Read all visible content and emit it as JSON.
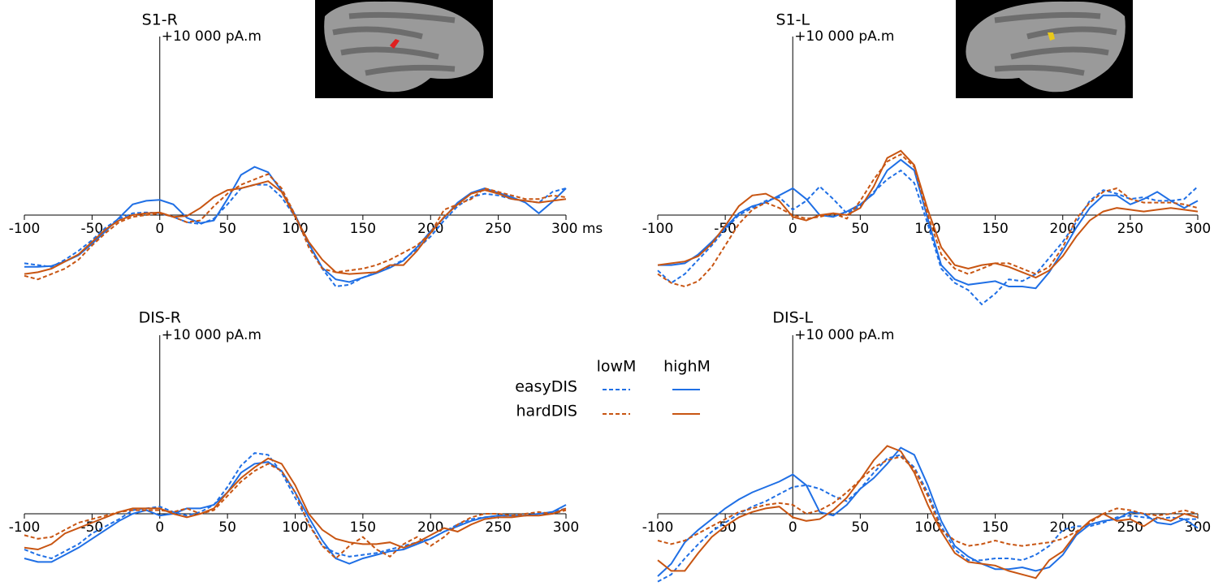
{
  "legend": {
    "columns": [
      {
        "label": "lowM",
        "dash": "dashed"
      },
      {
        "label": "highM",
        "dash": "solid"
      }
    ],
    "rows": [
      {
        "label": "easyDIS",
        "color": "#1f6fe5"
      },
      {
        "label": "hardDIS",
        "color": "#c85512"
      }
    ]
  },
  "chart_data": [
    {
      "type": "line",
      "title": "S1-R",
      "x": [
        -100,
        -90,
        -80,
        -70,
        -60,
        -50,
        -40,
        -30,
        -20,
        -10,
        0,
        10,
        20,
        30,
        40,
        50,
        60,
        70,
        80,
        90,
        100,
        110,
        120,
        130,
        140,
        150,
        160,
        170,
        180,
        190,
        200,
        210,
        220,
        230,
        240,
        250,
        260,
        270,
        280,
        290,
        300
      ],
      "xlim": [
        -100,
        300
      ],
      "xticks": [
        -100,
        -50,
        0,
        50,
        100,
        150,
        200,
        250,
        {
          "value": 300,
          "label": "300 ms"
        }
      ],
      "ylim": [
        -5500,
        10000
      ],
      "yticks": [
        {
          "value": 10000,
          "label": "+10 000 pA.m"
        }
      ],
      "series": [
        {
          "color": "#1f6fe5",
          "dash": "dashed",
          "values": [
            -2700,
            -2800,
            -2900,
            -2500,
            -2000,
            -1400,
            -700,
            -200,
            100,
            150,
            100,
            -100,
            -400,
            -500,
            -200,
            600,
            1500,
            1700,
            1700,
            1000,
            -100,
            -1600,
            -3000,
            -4000,
            -3900,
            -3500,
            -3200,
            -2900,
            -2500,
            -1900,
            -1200,
            -300,
            500,
            1000,
            1200,
            1100,
            900,
            800,
            700,
            1300,
            1500
          ]
        },
        {
          "color": "#1f6fe5",
          "dash": "solid",
          "values": [
            -2900,
            -2900,
            -2850,
            -2600,
            -2250,
            -1600,
            -900,
            -150,
            600,
            800,
            850,
            600,
            -150,
            -450,
            -300,
            900,
            2250,
            2700,
            2400,
            1350,
            0,
            -1600,
            -2950,
            -3600,
            -3750,
            -3500,
            -3250,
            -2950,
            -2550,
            -1800,
            -900,
            -150,
            700,
            1250,
            1500,
            1250,
            1000,
            700,
            100,
            750,
            1500
          ]
        },
        {
          "color": "#c85512",
          "dash": "dashed",
          "values": [
            -3400,
            -3600,
            -3300,
            -3000,
            -2500,
            -1700,
            -1000,
            -400,
            -100,
            0,
            100,
            -100,
            -400,
            -300,
            500,
            1200,
            1700,
            2000,
            2300,
            1500,
            0,
            -1800,
            -3000,
            -3200,
            -3100,
            -3000,
            -2800,
            -2500,
            -2100,
            -1700,
            -1000,
            300,
            600,
            900,
            1500,
            1300,
            1100,
            900,
            900,
            1100,
            1000
          ]
        },
        {
          "color": "#c85512",
          "dash": "solid",
          "values": [
            -3300,
            -3200,
            -3000,
            -2600,
            -2200,
            -1500,
            -800,
            -300,
            0,
            100,
            150,
            -100,
            -50,
            400,
            1000,
            1400,
            1500,
            1700,
            1900,
            1300,
            -100,
            -1500,
            -2500,
            -3200,
            -3300,
            -3250,
            -3200,
            -2800,
            -2800,
            -2000,
            -1000,
            -100,
            600,
            1200,
            1400,
            1200,
            900,
            800,
            700,
            800,
            900
          ]
        }
      ]
    },
    {
      "type": "line",
      "title": "S1-L",
      "x": [
        -100,
        -90,
        -80,
        -70,
        -60,
        -50,
        -40,
        -30,
        -20,
        -10,
        0,
        10,
        20,
        30,
        40,
        50,
        60,
        70,
        80,
        90,
        100,
        110,
        120,
        130,
        140,
        150,
        160,
        170,
        180,
        190,
        200,
        210,
        220,
        230,
        240,
        250,
        260,
        270,
        280,
        290,
        300
      ],
      "xlim": [
        -100,
        300
      ],
      "xticks": [
        -100,
        -50,
        0,
        50,
        100,
        150,
        200,
        250,
        300
      ],
      "ylim": [
        -5500,
        10000
      ],
      "yticks": [
        {
          "value": 10000,
          "label": "+10 000 pA.m"
        }
      ],
      "series": [
        {
          "color": "#1f6fe5",
          "dash": "dashed",
          "values": [
            -3100,
            -3800,
            -3300,
            -2500,
            -1700,
            -800,
            0,
            400,
            800,
            1000,
            300,
            800,
            1600,
            900,
            100,
            500,
            1300,
            2000,
            2500,
            1800,
            -500,
            -3000,
            -3800,
            -4200,
            -5000,
            -4400,
            -3600,
            -3700,
            -3300,
            -2400,
            -1500,
            -400,
            800,
            1400,
            1200,
            900,
            1000,
            800,
            800,
            900,
            1600
          ]
        },
        {
          "color": "#1f6fe5",
          "dash": "solid",
          "values": [
            -2800,
            -2800,
            -2700,
            -2200,
            -1500,
            -700,
            100,
            500,
            700,
            1100,
            1500,
            900,
            0,
            -100,
            200,
            600,
            1200,
            2500,
            3100,
            2500,
            -200,
            -2800,
            -3600,
            -3900,
            -3800,
            -3700,
            -4000,
            -4000,
            -4100,
            -3200,
            -2000,
            -700,
            400,
            1100,
            1100,
            600,
            900,
            1300,
            800,
            400,
            800
          ]
        },
        {
          "color": "#c85512",
          "dash": "dashed",
          "values": [
            -3300,
            -3800,
            -4000,
            -3700,
            -2900,
            -1700,
            -500,
            300,
            700,
            400,
            0,
            -200,
            -100,
            100,
            -200,
            800,
            2000,
            3000,
            3400,
            2700,
            0,
            -2200,
            -3000,
            -3300,
            -3000,
            -2700,
            -2700,
            -3000,
            -3300,
            -2900,
            -1800,
            -200,
            700,
            1300,
            1500,
            900,
            700,
            700,
            700,
            600,
            400
          ]
        },
        {
          "color": "#c85512",
          "dash": "solid",
          "values": [
            -2800,
            -2700,
            -2600,
            -2300,
            -1600,
            -600,
            500,
            1100,
            1200,
            800,
            -100,
            -300,
            0,
            100,
            0,
            400,
            1600,
            3200,
            3600,
            2800,
            300,
            -1800,
            -2800,
            -3000,
            -2800,
            -2700,
            -2900,
            -3200,
            -3500,
            -3100,
            -2300,
            -1200,
            -300,
            200,
            400,
            300,
            200,
            300,
            400,
            300,
            200
          ]
        }
      ]
    },
    {
      "type": "line",
      "title": "DIS-R",
      "x": [
        -100,
        -90,
        -80,
        -70,
        -60,
        -50,
        -40,
        -30,
        -20,
        -10,
        0,
        10,
        20,
        30,
        40,
        50,
        60,
        70,
        80,
        90,
        100,
        110,
        120,
        130,
        140,
        150,
        160,
        170,
        180,
        190,
        200,
        210,
        220,
        230,
        240,
        250,
        260,
        270,
        280,
        290,
        300
      ],
      "xlim": [
        -100,
        300
      ],
      "xticks": [
        -100,
        -50,
        0,
        50,
        100,
        150,
        200,
        250,
        300
      ],
      "ylim": [
        -4000,
        10000
      ],
      "yticks": [
        {
          "value": 10000,
          "label": "+10 000 pA.m"
        }
      ],
      "series": [
        {
          "color": "#1f6fe5",
          "dash": "dashed",
          "values": [
            -2000,
            -2300,
            -2500,
            -2100,
            -1700,
            -1100,
            -700,
            -300,
            200,
            300,
            400,
            100,
            -100,
            100,
            500,
            1500,
            2700,
            3400,
            3300,
            2300,
            900,
            -500,
            -1800,
            -2200,
            -2400,
            -2300,
            -2200,
            -2000,
            -1800,
            -1600,
            -1400,
            -1000,
            -600,
            -300,
            -200,
            -100,
            -100,
            -100,
            0,
            100,
            300
          ]
        },
        {
          "color": "#1f6fe5",
          "dash": "solid",
          "values": [
            -2500,
            -2700,
            -2700,
            -2300,
            -1900,
            -1400,
            -900,
            -400,
            0,
            200,
            -100,
            0,
            300,
            300,
            500,
            1200,
            2300,
            2800,
            2900,
            2400,
            1200,
            -200,
            -1500,
            -2500,
            -2800,
            -2500,
            -2300,
            -2100,
            -2000,
            -1700,
            -1400,
            -1000,
            -700,
            -400,
            -200,
            -100,
            -100,
            -100,
            0,
            100,
            500
          ]
        },
        {
          "color": "#c85512",
          "dash": "dashed",
          "values": [
            -1200,
            -1400,
            -1300,
            -900,
            -500,
            -300,
            -100,
            100,
            200,
            200,
            200,
            100,
            300,
            0,
            200,
            1000,
            1800,
            2400,
            2800,
            2400,
            1200,
            -600,
            -1800,
            -2500,
            -1800,
            -1300,
            -2000,
            -2400,
            -1700,
            -1300,
            -1800,
            -1300,
            -600,
            -200,
            0,
            0,
            -100,
            0,
            100,
            0,
            200
          ]
        },
        {
          "color": "#c85512",
          "dash": "solid",
          "values": [
            -1900,
            -2000,
            -1700,
            -1100,
            -800,
            -500,
            -200,
            100,
            300,
            300,
            300,
            0,
            -200,
            0,
            300,
            1200,
            2000,
            2600,
            3100,
            2800,
            1600,
            0,
            -900,
            -1400,
            -1600,
            -1700,
            -1700,
            -1600,
            -1900,
            -1600,
            -1200,
            -800,
            -1000,
            -600,
            -300,
            -200,
            -200,
            -100,
            -100,
            0,
            300
          ]
        }
      ]
    },
    {
      "type": "line",
      "title": "DIS-L",
      "x": [
        -100,
        -90,
        -80,
        -70,
        -60,
        -50,
        -40,
        -30,
        -20,
        -10,
        0,
        10,
        20,
        30,
        40,
        50,
        60,
        70,
        80,
        90,
        100,
        110,
        120,
        130,
        140,
        150,
        160,
        170,
        180,
        190,
        200,
        210,
        220,
        230,
        240,
        250,
        260,
        270,
        280,
        290,
        300
      ],
      "xlim": [
        -100,
        300
      ],
      "xticks": [
        -100,
        -50,
        0,
        50,
        100,
        150,
        200,
        250,
        300
      ],
      "ylim": [
        -4000,
        10000
      ],
      "yticks": [
        {
          "value": 10000,
          "label": "+10 000 pA.m"
        }
      ],
      "series": [
        {
          "color": "#1f6fe5",
          "dash": "dashed",
          "values": [
            -3800,
            -3400,
            -2500,
            -1700,
            -1000,
            -500,
            0,
            400,
            700,
            1100,
            1500,
            1600,
            1400,
            1000,
            700,
            1400,
            2300,
            3100,
            3300,
            2600,
            1200,
            -700,
            -2000,
            -2600,
            -2600,
            -2500,
            -2500,
            -2600,
            -2300,
            -1800,
            -900,
            -700,
            -700,
            -500,
            -200,
            -100,
            -200,
            -300,
            -200,
            -300,
            -300
          ]
        },
        {
          "color": "#1f6fe5",
          "dash": "solid",
          "values": [
            -3500,
            -2800,
            -1600,
            -900,
            -300,
            300,
            800,
            1200,
            1500,
            1800,
            2200,
            1600,
            100,
            -100,
            500,
            1400,
            2000,
            2800,
            3700,
            3300,
            1600,
            -400,
            -1800,
            -2400,
            -2800,
            -3100,
            -3100,
            -3000,
            -3200,
            -3000,
            -2300,
            -1200,
            -600,
            -400,
            -300,
            100,
            0,
            -500,
            -600,
            -300,
            -800
          ]
        },
        {
          "color": "#c85512",
          "dash": "dashed",
          "values": [
            -1500,
            -1700,
            -1500,
            -1100,
            -700,
            -300,
            100,
            300,
            500,
            600,
            500,
            0,
            200,
            600,
            1200,
            1900,
            2600,
            3000,
            3200,
            2500,
            1000,
            -900,
            -1500,
            -1800,
            -1700,
            -1500,
            -1700,
            -1800,
            -1700,
            -1600,
            -1400,
            -1000,
            -500,
            0,
            300,
            200,
            0,
            -100,
            0,
            200,
            0
          ]
        },
        {
          "color": "#c85512",
          "dash": "solid",
          "values": [
            -2600,
            -3200,
            -3200,
            -2200,
            -1300,
            -700,
            -200,
            100,
            300,
            400,
            -200,
            -400,
            -300,
            200,
            900,
            1900,
            3000,
            3800,
            3500,
            2300,
            500,
            -1000,
            -2200,
            -2700,
            -2800,
            -2900,
            -3200,
            -3400,
            -3600,
            -2600,
            -2100,
            -1100,
            -400,
            0,
            -400,
            -300,
            -700,
            -200,
            -400,
            0,
            -200
          ]
        }
      ]
    }
  ]
}
